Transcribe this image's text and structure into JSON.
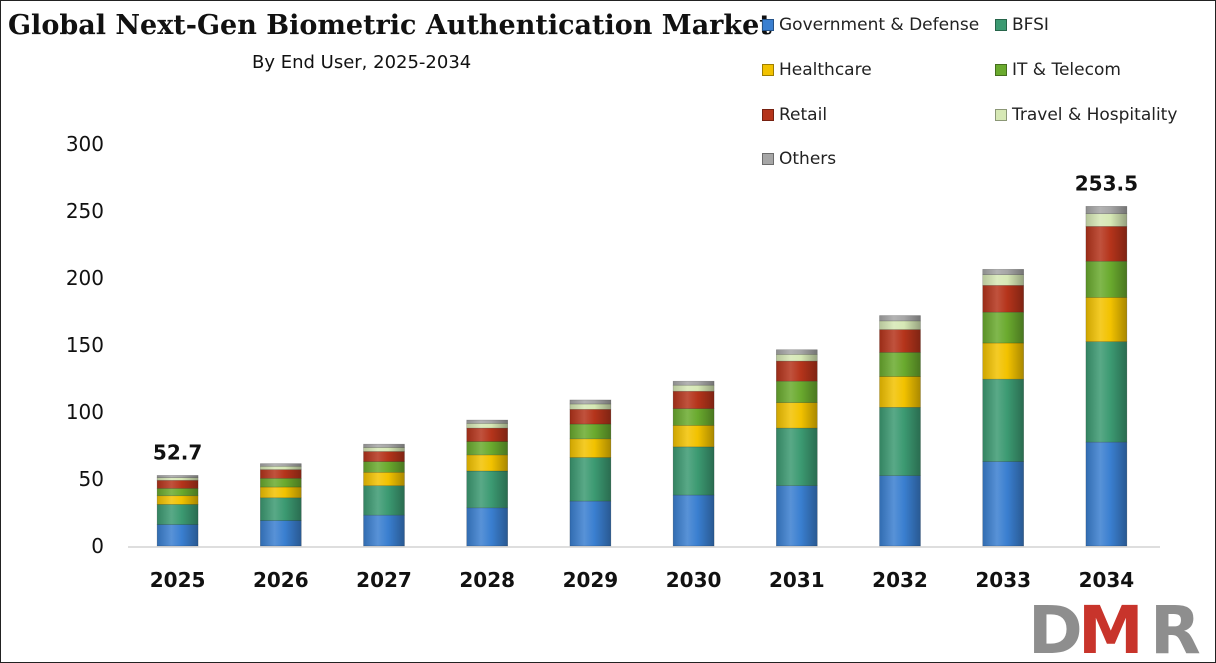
{
  "title": "Global Next-Gen Biometric Authentication Market",
  "subtitle": "By End User, 2025-2034",
  "logo_text": "DMR",
  "chart_data": {
    "type": "bar",
    "stacked": true,
    "title": "Global Next-Gen Biometric Authentication Market",
    "subtitle": "By End User, 2025-2034",
    "categories": [
      "2025",
      "2026",
      "2027",
      "2028",
      "2029",
      "2030",
      "2031",
      "2032",
      "2033",
      "2034"
    ],
    "ylim": [
      0,
      300
    ],
    "yticks": [
      0,
      50,
      100,
      150,
      200,
      250,
      300
    ],
    "grid": false,
    "legend_position": "top-right",
    "series": [
      {
        "name": "Government & Defense",
        "color": "#3a7fd0",
        "values": [
          16,
          19,
          23,
          28.5,
          33.5,
          38,
          45,
          52.5,
          63,
          77.5
        ]
      },
      {
        "name": "BFSI",
        "color": "#3c9a72",
        "values": [
          15,
          17,
          22,
          27.5,
          32.5,
          36,
          43,
          51,
          61.5,
          75
        ]
      },
      {
        "name": "Healthcare",
        "color": "#f2c200",
        "values": [
          6.5,
          8,
          10,
          12,
          14,
          16,
          19,
          23,
          27,
          33
        ]
      },
      {
        "name": "IT & Telecom",
        "color": "#6aaa2e",
        "values": [
          5.5,
          6.5,
          8,
          10,
          11,
          12.5,
          16,
          18,
          23,
          27
        ]
      },
      {
        "name": "Retail",
        "color": "#b5341b",
        "values": [
          6,
          6.5,
          7.5,
          10,
          11,
          13,
          15,
          17,
          20,
          26
        ]
      },
      {
        "name": "Travel & Hospitality",
        "color": "#d6e8b5",
        "values": [
          2,
          2.5,
          3,
          3.5,
          4,
          4.5,
          5,
          6.5,
          8,
          9.5
        ]
      },
      {
        "name": "Others",
        "color": "#a6a6a6",
        "values": [
          1.7,
          2,
          2.5,
          2.5,
          3,
          3,
          3.5,
          4,
          4,
          5.5
        ]
      }
    ],
    "data_labels": [
      {
        "category": "2025",
        "text": "52.7"
      },
      {
        "category": "2034",
        "text": "253.5"
      }
    ]
  }
}
